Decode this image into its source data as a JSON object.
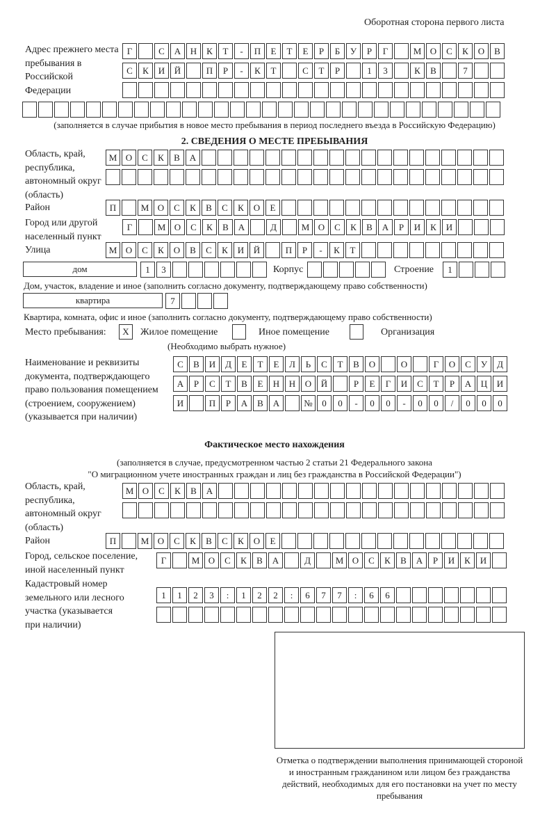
{
  "header": "Оборотная сторона первого листа",
  "prev_address": {
    "label": "Адрес прежнего места пребывания в Российской Федерации",
    "rows": [
      [
        "Г",
        "",
        "С",
        "А",
        "Н",
        "К",
        "Т",
        "-",
        "П",
        "Е",
        "Т",
        "Е",
        "Р",
        "Б",
        "У",
        "Р",
        "Г",
        "",
        "М",
        "О",
        "С",
        "К",
        "О",
        "В"
      ],
      [
        "С",
        "К",
        "И",
        "Й",
        "",
        "П",
        "Р",
        "-",
        "К",
        "Т",
        "",
        "С",
        "Т",
        "Р",
        "",
        "1",
        "3",
        "",
        "К",
        "В",
        "",
        "7",
        "",
        ""
      ],
      [
        "",
        "",
        "",
        "",
        "",
        "",
        "",
        "",
        "",
        "",
        "",
        "",
        "",
        "",
        "",
        "",
        "",
        "",
        "",
        "",
        "",
        "",
        "",
        ""
      ],
      [
        "",
        "",
        "",
        "",
        "",
        "",
        "",
        "",
        "",
        "",
        "",
        "",
        "",
        "",
        "",
        "",
        "",
        "",
        "",
        "",
        "",
        "",
        "",
        "",
        "",
        "",
        "",
        "",
        "",
        ""
      ]
    ],
    "note": "(заполняется в случае прибытия в новое место пребывания в период последнего въезда в Российскую Федерацию)"
  },
  "section2": {
    "title": "2. СВЕДЕНИЯ О МЕСТЕ ПРЕБЫВАНИЯ",
    "region_label": "Область, край, республика, автономный округ (область)",
    "region_rows": [
      [
        "М",
        "О",
        "С",
        "К",
        "В",
        "А",
        "",
        "",
        "",
        "",
        "",
        "",
        "",
        "",
        "",
        "",
        "",
        "",
        "",
        "",
        "",
        "",
        "",
        "",
        ""
      ],
      [
        "",
        "",
        "",
        "",
        "",
        "",
        "",
        "",
        "",
        "",
        "",
        "",
        "",
        "",
        "",
        "",
        "",
        "",
        "",
        "",
        "",
        "",
        "",
        "",
        ""
      ]
    ],
    "district_label": "Район",
    "district": [
      "П",
      "",
      "М",
      "О",
      "С",
      "К",
      "В",
      "С",
      "К",
      "О",
      "Е",
      "",
      "",
      "",
      "",
      "",
      "",
      "",
      "",
      "",
      "",
      "",
      "",
      "",
      ""
    ],
    "city_label": "Город или другой населенный пункт",
    "city": [
      "Г",
      "",
      "М",
      "О",
      "С",
      "К",
      "В",
      "А",
      "",
      "Д",
      "",
      "М",
      "О",
      "С",
      "К",
      "В",
      "А",
      "Р",
      "И",
      "К",
      "И",
      "",
      "",
      ""
    ],
    "street_label": "Улица",
    "street": [
      "М",
      "О",
      "С",
      "К",
      "О",
      "В",
      "С",
      "К",
      "И",
      "Й",
      "",
      "П",
      "Р",
      "-",
      "К",
      "Т",
      "",
      "",
      "",
      "",
      "",
      "",
      "",
      "",
      ""
    ],
    "house_type": "дом",
    "house": [
      "1",
      "3",
      "",
      "",
      "",
      "",
      "",
      ""
    ],
    "korpus_label": "Корпус",
    "korpus": [
      "",
      "",
      "",
      "",
      ""
    ],
    "building_label": "Строение",
    "building": [
      "1",
      "",
      "",
      ""
    ],
    "house_note": "Дом, участок, владение и иное (заполнить согласно документу, подтверждающему право собственности)",
    "apt_type": "квартира",
    "apt": [
      "7",
      "",
      "",
      ""
    ],
    "apt_note": "Квартира, комната, офис и иное (заполнить согласно документу, подтверждающему право собственности)",
    "stay_label": "Место пребывания:",
    "stay_options": [
      {
        "mark": "X",
        "label": "Жилое помещение"
      },
      {
        "mark": "",
        "label": "Иное помещение"
      },
      {
        "mark": "",
        "label": "Организация"
      }
    ],
    "stay_note": "(Необходимо выбрать нужное)",
    "doc_label": "Наименование и реквизиты документа, подтверждающего право пользования помещением (строением, сооружением) (указывается при наличии)",
    "doc_rows": [
      [
        "С",
        "В",
        "И",
        "Д",
        "Е",
        "Т",
        "Е",
        "Л",
        "Ь",
        "С",
        "Т",
        "В",
        "О",
        "",
        "О",
        "",
        "Г",
        "О",
        "С",
        "У",
        "Д"
      ],
      [
        "А",
        "Р",
        "С",
        "Т",
        "В",
        "Е",
        "Н",
        "Н",
        "О",
        "Й",
        "",
        "Р",
        "Е",
        "Г",
        "И",
        "С",
        "Т",
        "Р",
        "А",
        "Ц",
        "И"
      ],
      [
        "И",
        "",
        "П",
        "Р",
        "А",
        "В",
        "А",
        "",
        "№",
        "0",
        "0",
        "-",
        "0",
        "0",
        "-",
        "0",
        "0",
        "/",
        "0",
        "0",
        "0"
      ]
    ]
  },
  "actual": {
    "title": "Фактическое место нахождения",
    "note1": "(заполняется в случае, предусмотренном частью 2 статьи 21 Федерального закона",
    "note2": "\"О миграционном учете иностранных граждан и лиц без гражданства в Российской Федерации\")",
    "region_label": "Область, край, республика, автономный округ (область)",
    "region_rows": [
      [
        "М",
        "О",
        "С",
        "К",
        "В",
        "А",
        "",
        "",
        "",
        "",
        "",
        "",
        "",
        "",
        "",
        "",
        "",
        "",
        "",
        "",
        "",
        "",
        "",
        ""
      ],
      [
        "",
        "",
        "",
        "",
        "",
        "",
        "",
        "",
        "",
        "",
        "",
        "",
        "",
        "",
        "",
        "",
        "",
        "",
        "",
        "",
        "",
        "",
        "",
        ""
      ]
    ],
    "district_label": "Район",
    "district": [
      "П",
      "",
      "М",
      "О",
      "С",
      "К",
      "В",
      "С",
      "К",
      "О",
      "Е",
      "",
      "",
      "",
      "",
      "",
      "",
      "",
      "",
      "",
      "",
      "",
      "",
      "",
      ""
    ],
    "city_label": "Город, сельское поселение, иной населенный пункт",
    "city": [
      "Г",
      "",
      "М",
      "О",
      "С",
      "К",
      "В",
      "А",
      "",
      "Д",
      "",
      "М",
      "О",
      "С",
      "К",
      "В",
      "А",
      "Р",
      "И",
      "К",
      "И",
      ""
    ],
    "cadastral_label": "Кадастровый номер земельного или лесного участка (указывается при наличии)",
    "cadastral_rows": [
      [
        "1",
        "1",
        "2",
        "3",
        ":",
        "1",
        "2",
        "2",
        ":",
        "6",
        "7",
        "7",
        ":",
        "6",
        "6",
        "",
        "",
        "",
        "",
        "",
        "",
        ""
      ],
      [
        "",
        "",
        "",
        "",
        "",
        "",
        "",
        "",
        "",
        "",
        "",
        "",
        "",
        "",
        "",
        "",
        "",
        "",
        "",
        "",
        "",
        ""
      ]
    ]
  },
  "stamp_caption": "Отметка о подтверждении выполнения принимающей стороной и иностранным гражданином или лицом без гражданства действий, необходимых для его постановки на учет по месту пребывания"
}
